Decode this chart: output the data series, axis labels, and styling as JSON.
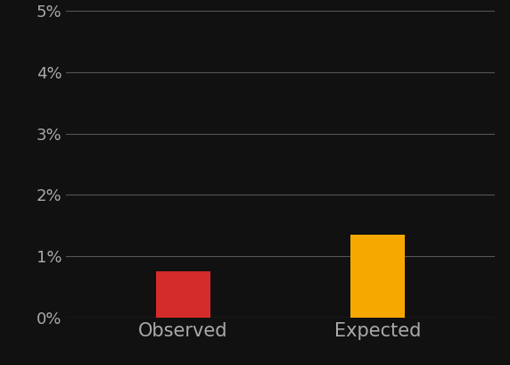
{
  "categories": [
    "Observed",
    "Expected"
  ],
  "values": [
    0.75,
    1.35
  ],
  "bar_colors": [
    "#d42b2b",
    "#f5a800"
  ],
  "background_color": "#111111",
  "text_color": "#aaaaaa",
  "grid_color": "#555555",
  "ylim_max": 5,
  "yticks": [
    0,
    1,
    2,
    3,
    4,
    5
  ],
  "bar_width": 0.28,
  "x_positions": [
    1,
    2
  ],
  "xlim": [
    0.4,
    2.6
  ],
  "xlabel_fontsize": 15,
  "tick_fontsize": 13
}
